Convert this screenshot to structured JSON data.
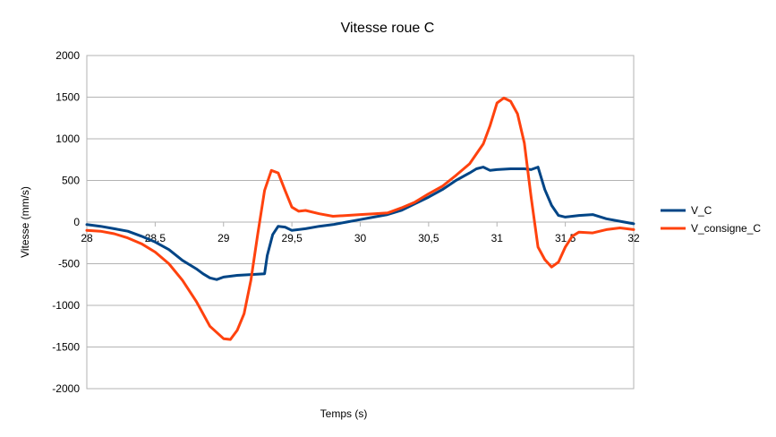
{
  "chart_data": {
    "type": "line",
    "title": "Vitesse roue C",
    "xlabel": "Temps (s)",
    "ylabel": "Vitesse (mm/s)",
    "xlim": [
      28,
      32
    ],
    "ylim": [
      -2000,
      2000
    ],
    "x_ticks": [
      28,
      28.5,
      29,
      29.5,
      30,
      30.5,
      31,
      31.5,
      32
    ],
    "x_tick_labels": [
      "28",
      "28,5",
      "29",
      "29,5",
      "30",
      "30,5",
      "31",
      "31,5",
      "32"
    ],
    "y_ticks": [
      2000,
      1500,
      1000,
      500,
      0,
      -500,
      -1000,
      -1500,
      -2000
    ],
    "y_tick_labels": [
      "2000",
      "1500",
      "1000",
      "500",
      "0",
      "-500",
      "-1000",
      "-1500",
      "-2000"
    ],
    "grid": "horizontal",
    "legend_position": "right",
    "series": [
      {
        "name": "V_C",
        "color": "#004586",
        "points": [
          [
            28.0,
            -30
          ],
          [
            28.1,
            -50
          ],
          [
            28.2,
            -80
          ],
          [
            28.3,
            -110
          ],
          [
            28.4,
            -170
          ],
          [
            28.5,
            -240
          ],
          [
            28.6,
            -330
          ],
          [
            28.7,
            -460
          ],
          [
            28.8,
            -560
          ],
          [
            28.85,
            -620
          ],
          [
            28.9,
            -670
          ],
          [
            28.95,
            -690
          ],
          [
            29.0,
            -660
          ],
          [
            29.1,
            -640
          ],
          [
            29.2,
            -630
          ],
          [
            29.3,
            -620
          ],
          [
            29.32,
            -400
          ],
          [
            29.36,
            -150
          ],
          [
            29.4,
            -50
          ],
          [
            29.45,
            -60
          ],
          [
            29.5,
            -100
          ],
          [
            29.6,
            -80
          ],
          [
            29.7,
            -50
          ],
          [
            29.8,
            -30
          ],
          [
            29.9,
            0
          ],
          [
            30.0,
            30
          ],
          [
            30.1,
            60
          ],
          [
            30.2,
            90
          ],
          [
            30.3,
            140
          ],
          [
            30.4,
            220
          ],
          [
            30.5,
            300
          ],
          [
            30.6,
            390
          ],
          [
            30.7,
            500
          ],
          [
            30.8,
            590
          ],
          [
            30.85,
            640
          ],
          [
            30.9,
            660
          ],
          [
            30.95,
            620
          ],
          [
            31.0,
            630
          ],
          [
            31.1,
            640
          ],
          [
            31.2,
            640
          ],
          [
            31.25,
            630
          ],
          [
            31.3,
            660
          ],
          [
            31.35,
            390
          ],
          [
            31.4,
            200
          ],
          [
            31.45,
            80
          ],
          [
            31.5,
            60
          ],
          [
            31.6,
            80
          ],
          [
            31.7,
            90
          ],
          [
            31.8,
            40
          ],
          [
            31.9,
            10
          ],
          [
            32.0,
            -20
          ]
        ]
      },
      {
        "name": "V_consigne_C",
        "color": "#ff420e",
        "points": [
          [
            28.0,
            -100
          ],
          [
            28.1,
            -110
          ],
          [
            28.2,
            -140
          ],
          [
            28.3,
            -190
          ],
          [
            28.4,
            -260
          ],
          [
            28.5,
            -360
          ],
          [
            28.6,
            -500
          ],
          [
            28.7,
            -700
          ],
          [
            28.8,
            -950
          ],
          [
            28.9,
            -1250
          ],
          [
            29.0,
            -1400
          ],
          [
            29.05,
            -1410
          ],
          [
            29.1,
            -1300
          ],
          [
            29.15,
            -1100
          ],
          [
            29.2,
            -700
          ],
          [
            29.25,
            -150
          ],
          [
            29.3,
            380
          ],
          [
            29.35,
            620
          ],
          [
            29.4,
            590
          ],
          [
            29.45,
            380
          ],
          [
            29.5,
            180
          ],
          [
            29.55,
            130
          ],
          [
            29.6,
            140
          ],
          [
            29.7,
            100
          ],
          [
            29.8,
            70
          ],
          [
            29.9,
            80
          ],
          [
            30.0,
            90
          ],
          [
            30.1,
            100
          ],
          [
            30.2,
            110
          ],
          [
            30.3,
            170
          ],
          [
            30.4,
            240
          ],
          [
            30.5,
            340
          ],
          [
            30.6,
            430
          ],
          [
            30.7,
            560
          ],
          [
            30.8,
            700
          ],
          [
            30.9,
            940
          ],
          [
            30.95,
            1160
          ],
          [
            31.0,
            1430
          ],
          [
            31.05,
            1490
          ],
          [
            31.1,
            1450
          ],
          [
            31.15,
            1300
          ],
          [
            31.2,
            950
          ],
          [
            31.25,
            300
          ],
          [
            31.3,
            -300
          ],
          [
            31.35,
            -450
          ],
          [
            31.4,
            -540
          ],
          [
            31.45,
            -480
          ],
          [
            31.5,
            -300
          ],
          [
            31.55,
            -170
          ],
          [
            31.6,
            -120
          ],
          [
            31.7,
            -130
          ],
          [
            31.8,
            -90
          ],
          [
            31.9,
            -70
          ],
          [
            32.0,
            -90
          ]
        ]
      }
    ]
  }
}
